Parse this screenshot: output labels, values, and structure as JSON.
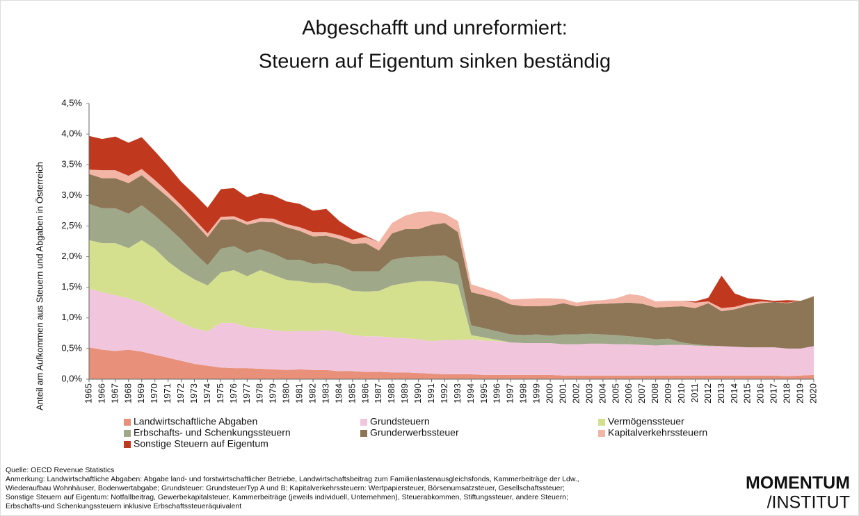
{
  "chart_data": {
    "type": "stacked_area",
    "title": [
      "Abgeschafft und unreformiert:",
      "Steuern auf Eigentum sinken beständig"
    ],
    "y_label": "Anteil am  Aufkommen aus Steuern und Abgaben in Österreich",
    "categories": [
      1965,
      1966,
      1967,
      1968,
      1969,
      1970,
      1971,
      1972,
      1973,
      1974,
      1975,
      1976,
      1977,
      1978,
      1979,
      1980,
      1981,
      1982,
      1983,
      1984,
      1985,
      1986,
      1987,
      1988,
      1989,
      1990,
      1991,
      1992,
      1993,
      1994,
      1995,
      1996,
      1997,
      1998,
      1999,
      2000,
      2001,
      2002,
      2003,
      2004,
      2005,
      2006,
      2007,
      2008,
      2009,
      2010,
      2011,
      2012,
      2013,
      2014,
      2015,
      2016,
      2017,
      2018,
      2019,
      2020
    ],
    "ylim": [
      0,
      4.5
    ],
    "yticks": [
      {
        "value": 0,
        "label": "0,0%"
      },
      {
        "value": 0.5,
        "label": "0,5%"
      },
      {
        "value": 1,
        "label": "1,0%"
      },
      {
        "value": 1.5,
        "label": "1,5%"
      },
      {
        "value": 2,
        "label": "2,0%"
      },
      {
        "value": 2.5,
        "label": "2,5%"
      },
      {
        "value": 3,
        "label": "3,0%"
      },
      {
        "value": 3.5,
        "label": "3,5%"
      },
      {
        "value": 4,
        "label": "4,0%"
      },
      {
        "value": 4.5,
        "label": "4,5%"
      }
    ],
    "series": [
      {
        "name": "Landwirtschaftliche Abgaben",
        "color": "#e8907a",
        "values": [
          0.52,
          0.48,
          0.46,
          0.48,
          0.45,
          0.4,
          0.35,
          0.3,
          0.25,
          0.22,
          0.19,
          0.18,
          0.18,
          0.17,
          0.16,
          0.15,
          0.16,
          0.15,
          0.15,
          0.13,
          0.13,
          0.12,
          0.12,
          0.11,
          0.11,
          0.1,
          0.09,
          0.08,
          0.08,
          0.08,
          0.07,
          0.07,
          0.07,
          0.07,
          0.07,
          0.07,
          0.06,
          0.06,
          0.06,
          0.06,
          0.06,
          0.06,
          0.06,
          0.06,
          0.06,
          0.06,
          0.06,
          0.06,
          0.06,
          0.06,
          0.06,
          0.06,
          0.06,
          0.05,
          0.06,
          0.07
        ]
      },
      {
        "name": "Grundsteuern",
        "color": "#f1c6dd",
        "values": [
          0.96,
          0.94,
          0.91,
          0.84,
          0.8,
          0.75,
          0.68,
          0.62,
          0.58,
          0.56,
          0.73,
          0.74,
          0.67,
          0.66,
          0.64,
          0.63,
          0.63,
          0.63,
          0.65,
          0.64,
          0.59,
          0.58,
          0.58,
          0.57,
          0.56,
          0.55,
          0.53,
          0.56,
          0.56,
          0.57,
          0.56,
          0.55,
          0.53,
          0.52,
          0.52,
          0.52,
          0.51,
          0.51,
          0.52,
          0.52,
          0.51,
          0.51,
          0.5,
          0.49,
          0.5,
          0.5,
          0.49,
          0.48,
          0.48,
          0.47,
          0.46,
          0.46,
          0.46,
          0.45,
          0.44,
          0.47
        ]
      },
      {
        "name": "Vermögenssteuer",
        "color": "#d4e08e",
        "values": [
          0.79,
          0.8,
          0.85,
          0.82,
          1.02,
          0.98,
          0.89,
          0.84,
          0.8,
          0.75,
          0.82,
          0.86,
          0.83,
          0.95,
          0.9,
          0.84,
          0.81,
          0.79,
          0.77,
          0.75,
          0.72,
          0.73,
          0.74,
          0.85,
          0.9,
          0.95,
          0.98,
          0.94,
          0.9,
          0.07,
          0.05,
          0.02,
          0,
          0,
          0,
          0,
          0,
          0,
          0,
          0,
          0,
          0,
          0,
          0,
          0,
          0,
          0,
          0,
          0,
          0,
          0,
          0,
          0,
          0,
          0,
          0
        ]
      },
      {
        "name": "Erbschafts- und Schenkungssteuern",
        "color": "#a0a88a",
        "values": [
          0.59,
          0.57,
          0.57,
          0.56,
          0.57,
          0.54,
          0.56,
          0.52,
          0.43,
          0.33,
          0.39,
          0.39,
          0.38,
          0.34,
          0.35,
          0.33,
          0.35,
          0.31,
          0.32,
          0.33,
          0.32,
          0.33,
          0.32,
          0.42,
          0.42,
          0.4,
          0.41,
          0.44,
          0.36,
          0.16,
          0.15,
          0.14,
          0.13,
          0.13,
          0.14,
          0.12,
          0.16,
          0.16,
          0.16,
          0.15,
          0.15,
          0.13,
          0.12,
          0.1,
          0.1,
          0.04,
          0.02,
          0.01,
          0,
          0,
          0,
          0,
          0,
          0,
          0,
          0
        ]
      },
      {
        "name": "Grunderwerbssteuer",
        "color": "#8c7656",
        "values": [
          0.49,
          0.49,
          0.49,
          0.5,
          0.49,
          0.48,
          0.49,
          0.49,
          0.49,
          0.46,
          0.47,
          0.44,
          0.46,
          0.45,
          0.51,
          0.53,
          0.47,
          0.45,
          0.45,
          0.44,
          0.45,
          0.46,
          0.34,
          0.43,
          0.46,
          0.45,
          0.51,
          0.53,
          0.5,
          0.54,
          0.54,
          0.53,
          0.49,
          0.47,
          0.46,
          0.49,
          0.51,
          0.46,
          0.48,
          0.5,
          0.52,
          0.55,
          0.55,
          0.52,
          0.52,
          0.59,
          0.59,
          0.69,
          0.57,
          0.61,
          0.68,
          0.72,
          0.74,
          0.74,
          0.78,
          0.81
        ]
      },
      {
        "name": "Kapitalverkehrssteuern",
        "color": "#f2b5a6",
        "values": [
          0.07,
          0.13,
          0.13,
          0.12,
          0.1,
          0.1,
          0.08,
          0.07,
          0.06,
          0.06,
          0.05,
          0.05,
          0.05,
          0.06,
          0.06,
          0.05,
          0.06,
          0.07,
          0.06,
          0.06,
          0.07,
          0.1,
          0.14,
          0.17,
          0.22,
          0.28,
          0.22,
          0.15,
          0.18,
          0.13,
          0.11,
          0.1,
          0.08,
          0.12,
          0.13,
          0.12,
          0.07,
          0.06,
          0.06,
          0.06,
          0.08,
          0.14,
          0.13,
          0.1,
          0.1,
          0.09,
          0.09,
          0.03,
          0.05,
          0.04,
          0.04,
          0.03,
          0,
          0.01,
          0,
          0.01
        ]
      },
      {
        "name": "Sonstige Steuern auf Eigentum",
        "color": "#c0391f",
        "values": [
          0.55,
          0.51,
          0.55,
          0.54,
          0.52,
          0.47,
          0.43,
          0.38,
          0.41,
          0.42,
          0.45,
          0.46,
          0.4,
          0.41,
          0.38,
          0.37,
          0.38,
          0.35,
          0.38,
          0.23,
          0.16,
          0.02,
          0,
          0,
          0,
          0,
          0,
          0,
          0,
          0,
          0,
          0,
          0,
          0,
          0,
          0,
          0,
          0,
          0,
          0,
          0,
          0,
          0,
          0,
          0,
          0,
          0.02,
          0.06,
          0.53,
          0.22,
          0.08,
          0.03,
          0.02,
          0.04,
          0,
          0
        ]
      }
    ]
  },
  "notes": {
    "source": "Quelle: OECD Revenue Statistics",
    "lines": [
      "Anmerkung: Landwirtschaftliche Abgaben: Abgabe land- und forstwirtschaftlicher Betriebe, Landwirtschaftsbeitrag zum Familienlastenausgleichsfonds, Kammerbeiträge der Ldw.,",
      "Wiederaufbau Wohnhäuser, Bodenwertabgabe; Grundsteuer: GrundsteuerTyp A und B; Kapitalverkehrssteuern: Wertpapiersteuer, Börsenumsatzsteuer, Gesellschaftssteuer;",
      "Sonstige Steuern auf Eigentum: Notfallbeitrag, Gewerbekapitalsteuer, Kammerbeiträge (jeweils individuell, Unternehmen), Steuerabkommen, Stiftungssteuer, andere Steuern;",
      "Erbschafts-und Schenkungssteuern inklusive Erbschaftssteueräquivalent"
    ]
  },
  "logo": {
    "line1": "MOMENTUM",
    "line2": "/INSTITUT"
  }
}
